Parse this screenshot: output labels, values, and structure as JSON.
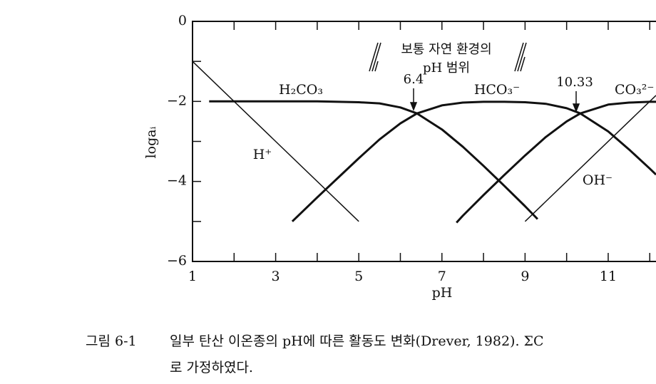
{
  "chart_data": {
    "type": "line",
    "xlabel": "pH",
    "ylabel": "logaᵢ",
    "xlim": [
      1,
      12.15
    ],
    "ylim": [
      -6,
      0
    ],
    "xticks": [
      1,
      3,
      5,
      7,
      9,
      11
    ],
    "xminorticks": [
      2,
      4,
      6,
      8,
      10,
      12
    ],
    "yticks": [
      0,
      {
        "value": -2,
        "label": "−2"
      },
      {
        "value": -4,
        "label": "−4"
      },
      {
        "value": -6,
        "label": "−6"
      }
    ],
    "yminorticks": [
      -1,
      -3,
      -5
    ],
    "series": [
      {
        "name": "H₂CO₃",
        "color": "#111111",
        "linewidth": 3,
        "x": [
          1.4,
          2,
          3,
          4,
          4.5,
          5,
          5.5,
          6,
          6.4,
          7,
          7.5,
          8,
          8.5,
          9,
          9.3
        ],
        "values": [
          -2.0,
          -2.0,
          -2.0,
          -2.0,
          -2.01,
          -2.02,
          -2.05,
          -2.15,
          -2.3,
          -2.7,
          -3.13,
          -3.61,
          -4.11,
          -4.62,
          -4.94
        ]
      },
      {
        "name": "HCO₃⁻",
        "color": "#111111",
        "linewidth": 3,
        "x": [
          3.4,
          4,
          4.5,
          5,
          5.5,
          6,
          6.4,
          7,
          7.5,
          8,
          8.5,
          9,
          9.5,
          10,
          10.33,
          11,
          11.5,
          12,
          12.15
        ],
        "values": [
          -5.0,
          -4.4,
          -3.91,
          -3.42,
          -2.95,
          -2.55,
          -2.3,
          -2.1,
          -2.03,
          -2.01,
          -2.01,
          -2.02,
          -2.06,
          -2.17,
          -2.3,
          -2.75,
          -3.2,
          -3.68,
          -3.83
        ]
      },
      {
        "name": "CO₃²⁻",
        "color": "#111111",
        "linewidth": 3,
        "x": [
          7.35,
          7.5,
          8,
          8.5,
          9,
          9.5,
          10,
          10.33,
          11,
          11.5,
          12,
          12.15
        ],
        "values": [
          -5.03,
          -4.86,
          -4.34,
          -3.84,
          -3.35,
          -2.89,
          -2.5,
          -2.3,
          -2.08,
          -2.03,
          -2.01,
          -2.01
        ]
      },
      {
        "name": "H⁺",
        "color": "#111111",
        "linewidth": 1.5,
        "x": [
          1,
          5
        ],
        "values": [
          -1,
          -5
        ]
      },
      {
        "name": "OH⁻",
        "color": "#111111",
        "linewidth": 1.5,
        "x": [
          9,
          12.15
        ],
        "values": [
          -5,
          -1.85
        ]
      }
    ],
    "annotations": [
      "6.4",
      "10.33",
      "보통 자연 환경의",
      "pH 범위"
    ],
    "caption": {
      "label": "그림 6-1",
      "lines": [
        "일부 탄산 이온종의 pH에 따른 활동도 변화(Drever, 1982). ΣC",
        "로 가정하였다."
      ]
    }
  }
}
